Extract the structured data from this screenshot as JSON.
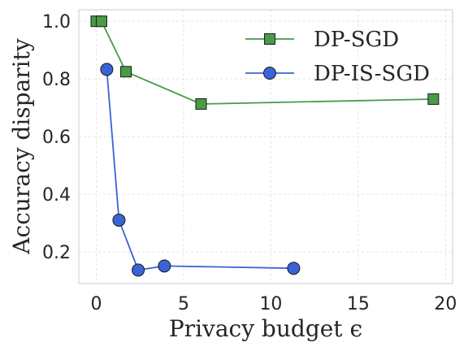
{
  "chart_data": {
    "type": "line",
    "xlabel": "Privacy budget ϵ",
    "ylabel": "Accuracy disparity",
    "xlim": [
      -1,
      20.4
    ],
    "ylim": [
      0.09,
      1.04
    ],
    "xticks": [
      0,
      5,
      10,
      15,
      20
    ],
    "yticks": [
      0.2,
      0.4,
      0.6,
      0.8,
      1.0
    ],
    "ytick_labels": [
      "0.2",
      "0.4",
      "0.6",
      "0.8",
      "1.0"
    ],
    "grid": true,
    "legend_position": "top-right",
    "series": [
      {
        "name": "DP-SGD",
        "color": "#4a9a48",
        "marker": "square",
        "x": [
          0.0,
          0.3,
          1.7,
          6.0,
          19.3
        ],
        "y": [
          1.0,
          1.0,
          0.825,
          0.713,
          0.73
        ]
      },
      {
        "name": "DP-IS-SGD",
        "color": "#3a63d6",
        "marker": "circle",
        "x": [
          0.6,
          1.3,
          2.4,
          3.9,
          11.3
        ],
        "y": [
          0.833,
          0.31,
          0.137,
          0.151,
          0.143
        ]
      }
    ]
  }
}
